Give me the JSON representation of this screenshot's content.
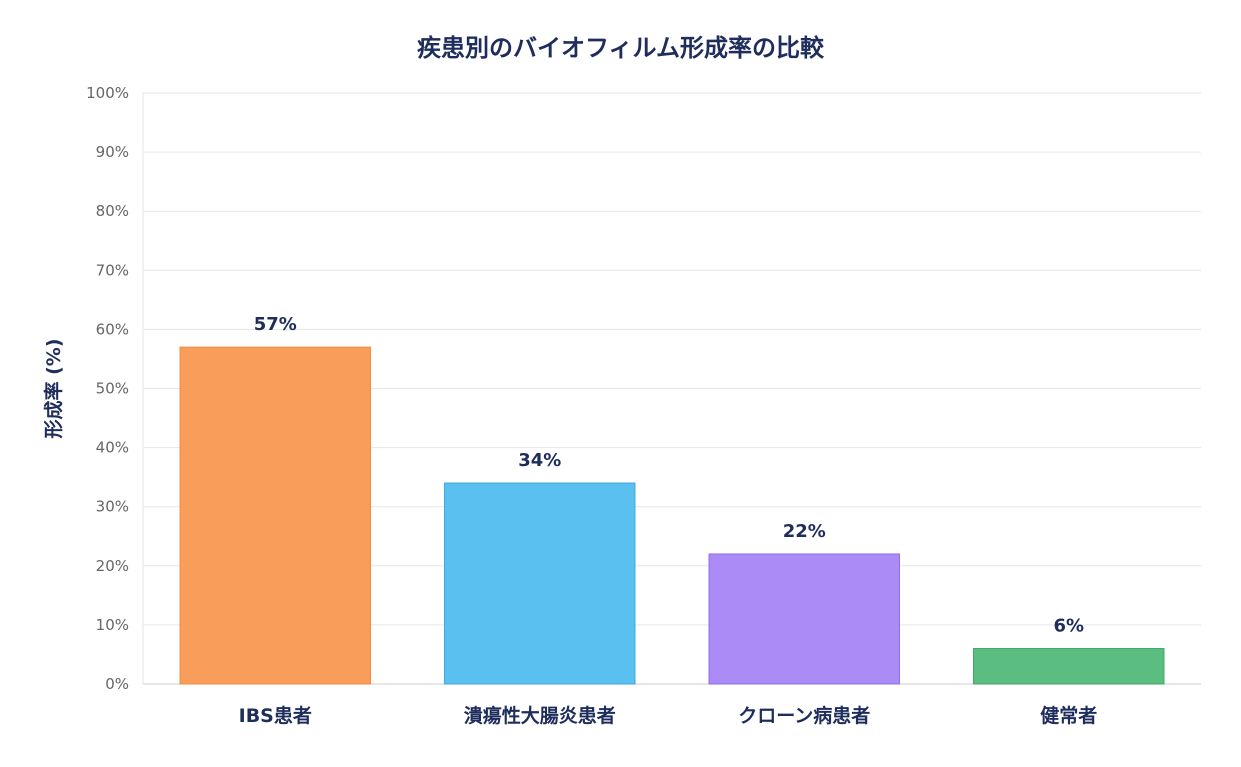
{
  "chart_data": {
    "type": "bar",
    "title": "疾患別のバイオフィルム形成率の比較",
    "xlabel": "",
    "ylabel": "形成率 (%)",
    "ylim": [
      0,
      100
    ],
    "y_tick_step": 10,
    "y_tick_suffix": "%",
    "grid": true,
    "legend": "none",
    "categories": [
      "IBS患者",
      "潰瘍性大腸炎患者",
      "クローン病患者",
      "健常者"
    ],
    "values": [
      57,
      34,
      22,
      6
    ],
    "data_labels": [
      "57%",
      "34%",
      "22%",
      "6%"
    ],
    "colors": [
      {
        "fill": "#f99d5b",
        "stroke": "#f58a3b"
      },
      {
        "fill": "#5ac0f0",
        "stroke": "#3aa8dd"
      },
      {
        "fill": "#ab8bf5",
        "stroke": "#8f6be8"
      },
      {
        "fill": "#5cbd80",
        "stroke": "#3fa665"
      }
    ]
  }
}
